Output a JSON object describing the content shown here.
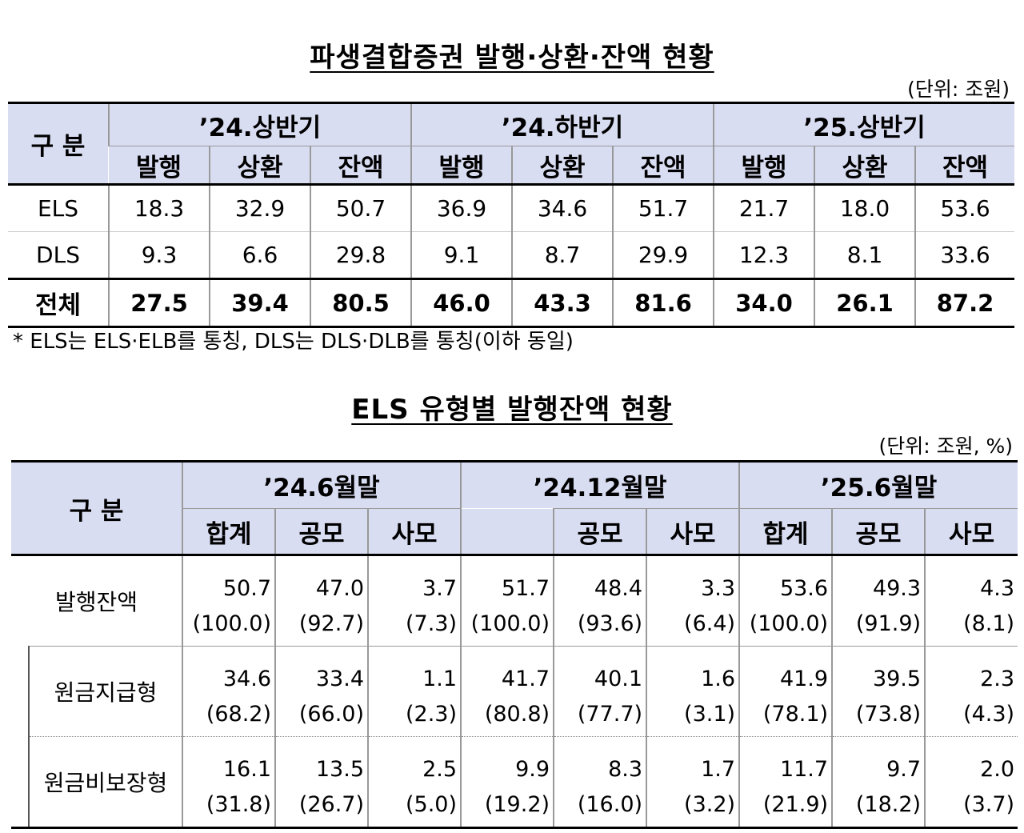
{
  "table1": {
    "title": "파생결합증권 발행·상환·잔액 현황",
    "unit": "(단위: 조원)",
    "corner": "구 분",
    "periods": [
      "’24.상반기",
      "’24.하반기",
      "’25.상반기"
    ],
    "subcols": [
      "발행",
      "상환",
      "잔액"
    ],
    "rows": [
      {
        "label": "ELS",
        "values": [
          "18.3",
          "32.9",
          "50.7",
          "36.9",
          "34.6",
          "51.7",
          "21.7",
          "18.0",
          "53.6"
        ]
      },
      {
        "label": "DLS",
        "values": [
          "9.3",
          "6.6",
          "29.8",
          "9.1",
          "8.7",
          "29.9",
          "12.3",
          "8.1",
          "33.6"
        ]
      },
      {
        "label": "전체",
        "values": [
          "27.5",
          "39.4",
          "80.5",
          "46.0",
          "43.3",
          "81.6",
          "34.0",
          "26.1",
          "87.2"
        ]
      }
    ],
    "note": "* ELS는 ELS·ELB를 통칭, DLS는 DLS·DLB를 통칭(이하 동일)"
  },
  "table2": {
    "title": "ELS 유형별 발행잔액 현황",
    "unit": "(단위: 조원, %)",
    "corner": "구 분",
    "periods": [
      "’24.6월말",
      "’24.12월말",
      "’25.6월말"
    ],
    "sub": {
      "total": "합계",
      "public": "공모",
      "private": "사모"
    },
    "rows": [
      {
        "label": "발행잔액",
        "values": [
          "50.7",
          "47.0",
          "3.7",
          "51.7",
          "48.4",
          "3.3",
          "53.6",
          "49.3",
          "4.3"
        ],
        "pcts": [
          "(100.0)",
          "(92.7)",
          "(7.3)",
          "(100.0)",
          "(93.6)",
          "(6.4)",
          "(100.0)",
          "(91.9)",
          "(8.1)"
        ]
      },
      {
        "label": "원금지급형",
        "values": [
          "34.6",
          "33.4",
          "1.1",
          "41.7",
          "40.1",
          "1.6",
          "41.9",
          "39.5",
          "2.3"
        ],
        "pcts": [
          "(68.2)",
          "(66.0)",
          "(2.3)",
          "(80.8)",
          "(77.7)",
          "(3.1)",
          "(78.1)",
          "(73.8)",
          "(4.3)"
        ]
      },
      {
        "label": "원금비보장형",
        "values": [
          "16.1",
          "13.5",
          "2.5",
          "9.9",
          "8.3",
          "1.7",
          "11.7",
          "9.7",
          "2.0"
        ],
        "pcts": [
          "(31.8)",
          "(26.7)",
          "(5.0)",
          "(19.2)",
          "(16.0)",
          "(3.2)",
          "(21.9)",
          "(18.2)",
          "(3.7)"
        ]
      }
    ]
  }
}
